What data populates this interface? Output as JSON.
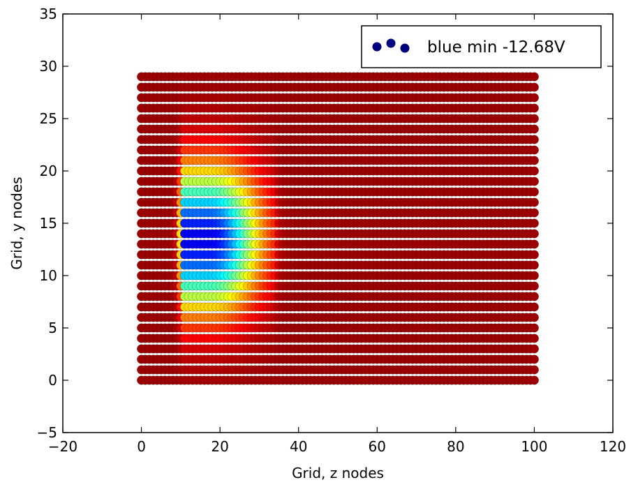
{
  "chart_data": {
    "type": "scatter",
    "title": "",
    "xlabel": "Grid, z nodes",
    "ylabel": "Grid, y nodes",
    "xlim": [
      -20,
      120
    ],
    "ylim": [
      -5,
      35
    ],
    "x_ticks": [
      -20,
      0,
      20,
      40,
      60,
      80,
      100,
      120
    ],
    "y_ticks": [
      -5,
      0,
      5,
      10,
      15,
      20,
      25,
      30,
      35
    ],
    "x_tick_labels": [
      "−20",
      "0",
      "20",
      "40",
      "60",
      "80",
      "100",
      "120"
    ],
    "y_tick_labels": [
      "−5",
      "0",
      "5",
      "10",
      "15",
      "20",
      "25",
      "30",
      "35"
    ],
    "grid": false,
    "colormap": "jet",
    "z_nodes": {
      "start": 0,
      "stop": 100,
      "step": 1
    },
    "y_nodes": {
      "start": 0,
      "stop": 29,
      "step": 1
    },
    "potential_well": {
      "center_z": 18,
      "center_y": 13.5,
      "z_edge_left": 10.5,
      "z_edge_right": 33,
      "y_spread": 9.5,
      "min_voltage": -12.68,
      "unit": "V"
    },
    "legend": {
      "position": "top-right",
      "label": "blue min -12.68V",
      "marker_color": "#00007f"
    }
  }
}
